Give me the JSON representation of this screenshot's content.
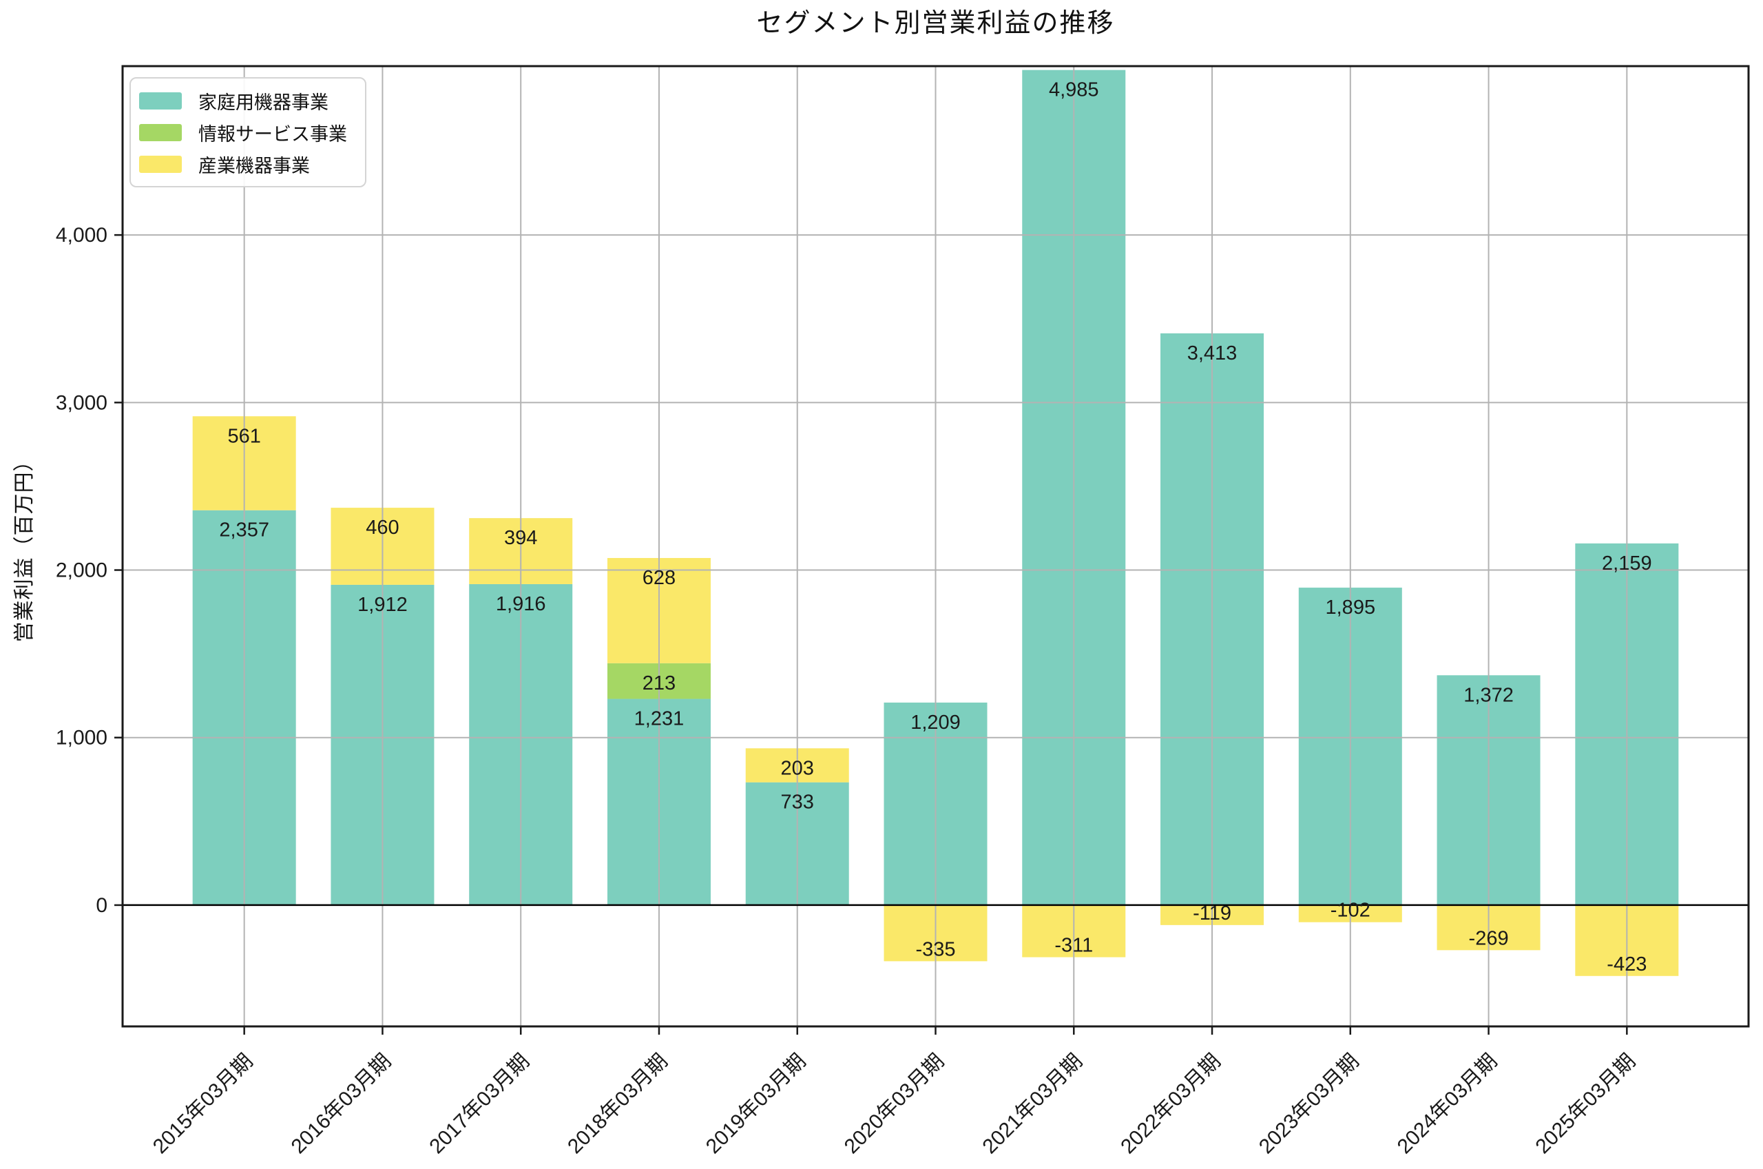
{
  "chart_data": {
    "type": "bar",
    "stacked": true,
    "title": "セグメント別営業利益の推移",
    "ylabel": "営業利益（百万円）",
    "xlabel": "",
    "categories": [
      "2015年03月期",
      "2016年03月期",
      "2017年03月期",
      "2018年03月期",
      "2019年03月期",
      "2020年03月期",
      "2021年03月期",
      "2022年03月期",
      "2023年03月期",
      "2024年03月期",
      "2025年03月期"
    ],
    "series": [
      {
        "name": "家庭用機器事業",
        "color": "#7dcfbe",
        "values": [
          2357,
          1912,
          1916,
          1231,
          733,
          1209,
          4985,
          3413,
          1895,
          1372,
          2159
        ]
      },
      {
        "name": "情報サービス事業",
        "color": "#a5d764",
        "values": [
          0,
          0,
          0,
          213,
          0,
          0,
          0,
          0,
          0,
          0,
          0
        ]
      },
      {
        "name": "産業機器事業",
        "color": "#fae869",
        "values": [
          561,
          460,
          394,
          628,
          203,
          -335,
          -311,
          -119,
          -102,
          -269,
          -423
        ]
      }
    ],
    "yticks": [
      0,
      1000,
      2000,
      3000,
      4000
    ],
    "ylim": [
      -724,
      5008
    ],
    "grid": true,
    "grid_on_top": true,
    "zero_line": true,
    "bar_value_labels": true,
    "legend_position": "upper left",
    "colors": {
      "grid": "#b3b3b3",
      "spine": "#1a1a1a",
      "text": "#1a1a1a",
      "background": "#ffffff"
    }
  }
}
